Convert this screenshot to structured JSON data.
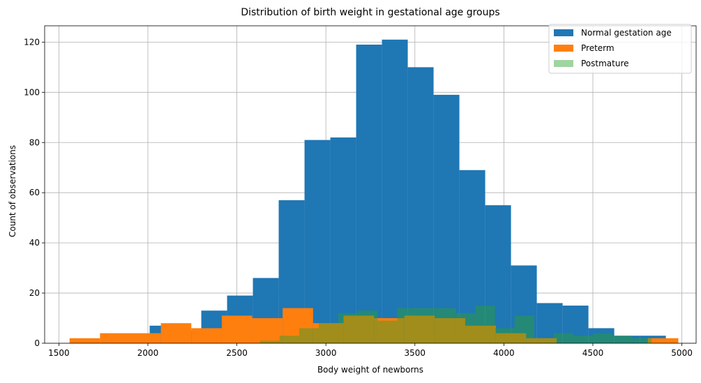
{
  "chart_data": {
    "type": "histogram",
    "title": "Distribution of birth weight in gestational age groups",
    "xlabel": "Body weight of newborns",
    "ylabel": "Count of observations",
    "xlim": [
      1420,
      5080
    ],
    "ylim": [
      0,
      126.5
    ],
    "xticks": [
      1500,
      2000,
      2500,
      3000,
      3500,
      4000,
      4500,
      5000
    ],
    "yticks": [
      0,
      20,
      40,
      60,
      80,
      100,
      120
    ],
    "grid": true,
    "legend_position": "top-right",
    "series": [
      {
        "name": "Normal gestation age",
        "color": "#1f77b4",
        "opacity": 1,
        "edges": [
          2010,
          2155,
          2300,
          2445,
          2590,
          2735,
          2880,
          3025,
          3170,
          3315,
          3460,
          3605,
          3750,
          3895,
          4040,
          4185,
          4330,
          4475,
          4620,
          4765,
          4910
        ],
        "counts": [
          7,
          5,
          13,
          19,
          26,
          57,
          81,
          82,
          119,
          121,
          110,
          99,
          69,
          55,
          31,
          16,
          15,
          6,
          3,
          3
        ]
      },
      {
        "name": "Preterm",
        "color": "#ff7f0e",
        "opacity": 1,
        "edges": [
          1560,
          1731,
          1902,
          2073,
          2244,
          2415,
          2586,
          2757,
          2928,
          3099,
          3270,
          3441,
          3612,
          3783,
          3954,
          4125,
          4296,
          4467,
          4638,
          4809,
          4980
        ],
        "counts": [
          2,
          4,
          4,
          8,
          6,
          11,
          10,
          14,
          8,
          11,
          10,
          11,
          10,
          7,
          4,
          2,
          0,
          0,
          0,
          2
        ]
      },
      {
        "name": "Postmature",
        "color": "#2ca02c",
        "opacity": 0.45,
        "edges": [
          2630,
          2740,
          2850,
          2960,
          3070,
          3180,
          3290,
          3400,
          3510,
          3620,
          3730,
          3840,
          3950,
          4060,
          4170,
          4280,
          4390,
          4500,
          4610,
          4720,
          4830
        ],
        "counts": [
          1,
          3,
          6,
          8,
          12,
          13,
          9,
          14,
          14,
          14,
          12,
          15,
          6,
          11,
          2,
          4,
          3,
          4,
          3,
          2
        ]
      }
    ]
  }
}
